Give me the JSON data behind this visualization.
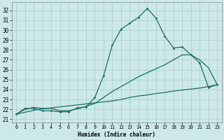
{
  "xlabel": "Humidex (Indice chaleur)",
  "bg_color": "#cce8e8",
  "grid_color": "#b0d4d4",
  "line_color": "#1a6e64",
  "x_ticks": [
    0,
    1,
    2,
    3,
    4,
    5,
    6,
    7,
    8,
    9,
    10,
    11,
    12,
    13,
    14,
    15,
    16,
    17,
    18,
    19,
    20,
    21,
    22,
    23
  ],
  "y_ticks": [
    21,
    22,
    23,
    24,
    25,
    26,
    27,
    28,
    29,
    30,
    31,
    32
  ],
  "ylim": [
    20.7,
    32.8
  ],
  "xlim": [
    -0.5,
    23.5
  ],
  "line1_x": [
    0,
    1,
    2,
    3,
    4,
    5,
    6,
    7,
    8,
    9,
    10,
    11,
    12,
    13,
    14,
    15,
    16,
    17,
    18,
    19,
    20,
    21,
    22,
    23
  ],
  "line1_y": [
    21.5,
    22.1,
    22.1,
    21.85,
    21.85,
    21.75,
    21.75,
    22.15,
    22.25,
    23.2,
    25.4,
    28.5,
    30.1,
    30.7,
    31.3,
    32.2,
    31.2,
    29.4,
    28.2,
    28.3,
    27.5,
    26.7,
    24.2,
    24.5
  ],
  "line2_x": [
    0,
    1,
    2,
    3,
    4,
    5,
    6,
    7,
    8,
    9,
    10,
    11,
    12,
    13,
    14,
    15,
    16,
    17,
    18,
    19,
    20,
    21,
    22,
    23
  ],
  "line2_y": [
    21.5,
    22.0,
    22.2,
    22.1,
    22.1,
    21.85,
    21.85,
    22.05,
    22.3,
    22.6,
    23.2,
    23.8,
    24.3,
    24.8,
    25.3,
    25.7,
    26.1,
    26.5,
    27.0,
    27.5,
    27.5,
    27.0,
    26.2,
    24.5
  ],
  "line3_x": [
    0,
    1,
    2,
    3,
    4,
    5,
    6,
    7,
    8,
    9,
    10,
    11,
    12,
    13,
    14,
    15,
    16,
    17,
    18,
    19,
    20,
    21,
    22,
    23
  ],
  "line3_y": [
    21.5,
    21.7,
    21.9,
    22.05,
    22.15,
    22.25,
    22.35,
    22.45,
    22.55,
    22.65,
    22.75,
    22.85,
    23.0,
    23.2,
    23.35,
    23.45,
    23.6,
    23.7,
    23.85,
    23.95,
    24.05,
    24.15,
    24.3,
    24.5
  ]
}
